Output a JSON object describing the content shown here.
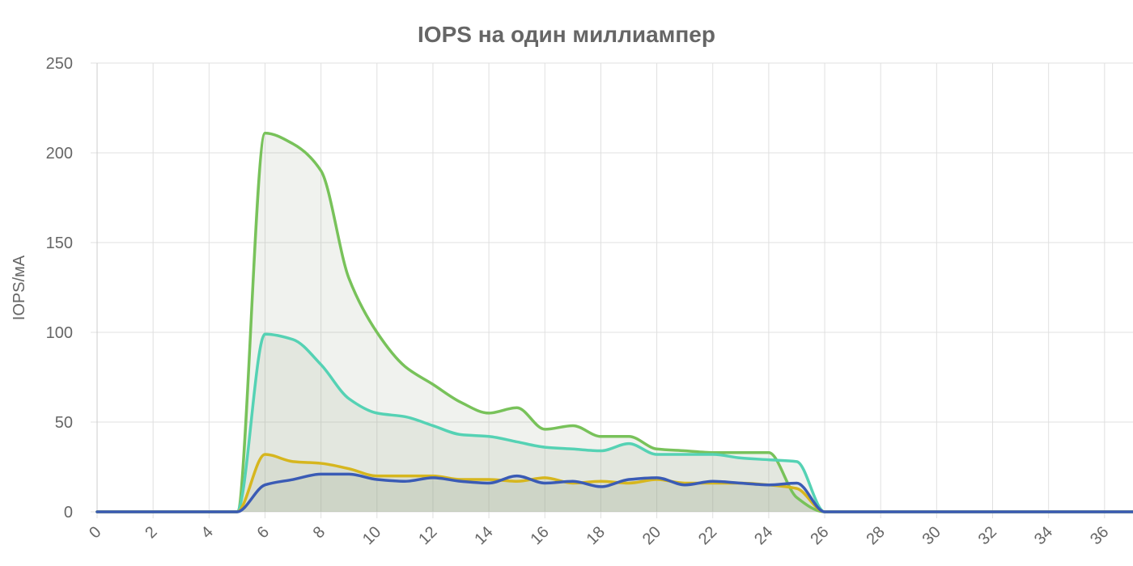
{
  "chart_data": {
    "type": "area",
    "title": "IOPS на один миллиампер",
    "xlabel": "",
    "ylabel": "IOPS/мА",
    "xlim": [
      0,
      37
    ],
    "ylim": [
      0,
      250
    ],
    "x_ticks": [
      0,
      2,
      4,
      6,
      8,
      10,
      12,
      14,
      16,
      18,
      20,
      22,
      24,
      26,
      28,
      30,
      32,
      34,
      36
    ],
    "y_ticks": [
      0,
      50,
      100,
      150,
      200,
      250
    ],
    "grid": true,
    "legend": "none",
    "x": [
      0,
      1,
      2,
      3,
      4,
      5,
      6,
      7,
      8,
      9,
      10,
      11,
      12,
      13,
      14,
      15,
      16,
      17,
      18,
      19,
      20,
      21,
      22,
      23,
      24,
      25,
      26,
      27,
      28,
      29,
      30,
      31,
      32,
      33,
      34,
      35,
      36,
      37
    ],
    "series": [
      {
        "color": "#78c25a",
        "values": [
          0,
          0,
          0,
          0,
          0,
          0,
          211,
          205,
          190,
          130,
          100,
          81,
          71,
          61,
          55,
          58,
          46,
          48,
          42,
          42,
          35,
          34,
          33,
          33,
          33,
          8,
          0,
          0,
          0,
          0,
          0,
          0,
          0,
          0,
          0,
          0,
          0,
          0
        ]
      },
      {
        "color": "#55d2b4",
        "values": [
          0,
          0,
          0,
          0,
          0,
          0,
          99,
          96,
          82,
          63,
          55,
          53,
          48,
          43,
          42,
          39,
          36,
          35,
          34,
          38,
          32,
          32,
          32,
          30,
          29,
          28,
          0,
          0,
          0,
          0,
          0,
          0,
          0,
          0,
          0,
          0,
          0,
          0
        ]
      },
      {
        "color": "#d6b61e",
        "values": [
          0,
          0,
          0,
          0,
          0,
          0,
          32,
          28,
          27,
          24,
          20,
          20,
          20,
          18,
          18,
          17,
          19,
          16,
          17,
          16,
          18,
          16,
          16,
          16,
          15,
          13,
          0,
          0,
          0,
          0,
          0,
          0,
          0,
          0,
          0,
          0,
          0,
          0
        ]
      },
      {
        "color": "#3a5bb5",
        "values": [
          0,
          0,
          0,
          0,
          0,
          0,
          15,
          18,
          21,
          21,
          18,
          17,
          19,
          17,
          16,
          20,
          16,
          17,
          14,
          18,
          19,
          15,
          17,
          16,
          15,
          16,
          0,
          0,
          0,
          0,
          0,
          0,
          0,
          0,
          0,
          0,
          0,
          0
        ]
      }
    ],
    "area_fill_color": "#9aa58a"
  }
}
